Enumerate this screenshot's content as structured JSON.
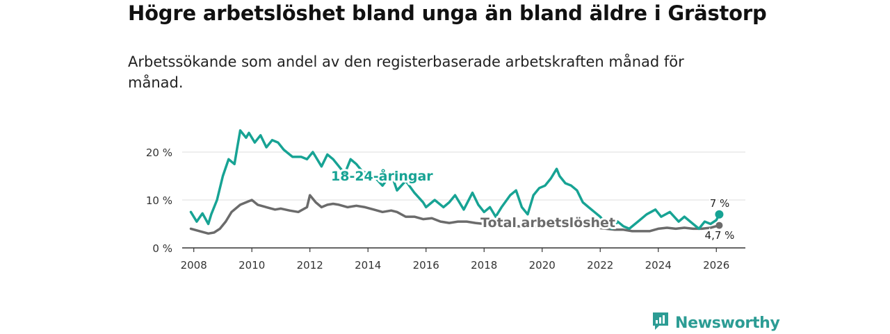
{
  "header": {
    "title": "Högre arbetslöshet bland unga än bland äldre i Grästorp",
    "subtitle": "Arbetssökande som andel av den registerbaserade arbetskraften månad för månad."
  },
  "brand": {
    "name": "Newsworthy"
  },
  "colors": {
    "youth": "#17a394",
    "total": "#6b6b6b",
    "grid": "#dddddd",
    "brand": "#2c9c94"
  },
  "chart_data": {
    "type": "line",
    "title": "Högre arbetslöshet bland unga än bland äldre i Grästorp",
    "xlabel": "",
    "ylabel": "",
    "xlim": [
      2007.6,
      2027.0
    ],
    "ylim": [
      0,
      20
    ],
    "x_ticks": [
      2008,
      2010,
      2012,
      2014,
      2016,
      2018,
      2020,
      2022,
      2024,
      2026
    ],
    "x_tick_labels": [
      "2008",
      "2010",
      "2012",
      "2014",
      "2016",
      "2018",
      "2020",
      "2022",
      "2024",
      "2026"
    ],
    "y_ticks": [
      0,
      10,
      20
    ],
    "y_tick_labels": [
      "0 %",
      "10 %",
      "20 %"
    ],
    "grid": true,
    "series": [
      {
        "name": "18-24-åringar",
        "label": "18-24-åringar",
        "end_label": "7 %",
        "color": "#17a394",
        "x": [
          2007.9,
          2008.1,
          2008.3,
          2008.5,
          2008.6,
          2008.8,
          2009.0,
          2009.2,
          2009.4,
          2009.5,
          2009.6,
          2009.8,
          2009.9,
          2010.1,
          2010.3,
          2010.5,
          2010.7,
          2010.9,
          2011.1,
          2011.4,
          2011.7,
          2011.9,
          2012.1,
          2012.4,
          2012.6,
          2012.8,
          2013.0,
          2013.2,
          2013.4,
          2013.6,
          2013.8,
          2014.0,
          2014.2,
          2014.5,
          2014.8,
          2015.0,
          2015.3,
          2015.6,
          2015.9,
          2016.0,
          2016.3,
          2016.6,
          2016.8,
          2017.0,
          2017.3,
          2017.6,
          2017.8,
          2018.0,
          2018.2,
          2018.4,
          2018.6,
          2018.9,
          2019.1,
          2019.3,
          2019.5,
          2019.7,
          2019.9,
          2020.1,
          2020.3,
          2020.5,
          2020.6,
          2020.8,
          2021.0,
          2021.2,
          2021.4,
          2021.6,
          2021.8,
          2022.0,
          2022.2,
          2022.4,
          2022.6,
          2022.8,
          2023.0,
          2023.3,
          2023.6,
          2023.9,
          2024.1,
          2024.4,
          2024.7,
          2024.9,
          2025.2,
          2025.4,
          2025.6,
          2025.8,
          2026.0,
          2026.1
        ],
        "values": [
          7.5,
          5.5,
          7.2,
          5.0,
          7.0,
          10.0,
          15.0,
          18.5,
          17.5,
          21.0,
          24.5,
          23.0,
          24.0,
          22.0,
          23.5,
          21.0,
          22.5,
          22.0,
          20.5,
          19.0,
          19.0,
          18.5,
          20.0,
          17.0,
          19.5,
          18.5,
          17.0,
          15.5,
          18.5,
          17.5,
          16.0,
          15.5,
          15.0,
          13.0,
          15.5,
          12.0,
          14.0,
          11.5,
          9.5,
          8.5,
          10.0,
          8.5,
          9.5,
          11.0,
          8.0,
          11.5,
          9.0,
          7.5,
          8.5,
          6.5,
          8.5,
          11.0,
          12.0,
          8.5,
          7.0,
          11.0,
          12.5,
          13.0,
          14.5,
          16.5,
          15.0,
          13.5,
          13.0,
          12.0,
          9.5,
          8.5,
          7.5,
          6.5,
          5.0,
          4.0,
          5.5,
          4.5,
          4.0,
          5.5,
          7.0,
          8.0,
          6.5,
          7.5,
          5.5,
          6.5,
          5.0,
          4.0,
          5.5,
          5.0,
          5.8,
          7.0
        ]
      },
      {
        "name": "Total arbetslöshet",
        "label": "Total arbetslöshet",
        "end_label": "4,7 %",
        "color": "#6b6b6b",
        "x": [
          2007.9,
          2008.2,
          2008.5,
          2008.7,
          2008.9,
          2009.1,
          2009.3,
          2009.6,
          2009.8,
          2010.0,
          2010.2,
          2010.5,
          2010.8,
          2011.0,
          2011.3,
          2011.6,
          2011.9,
          2012.0,
          2012.2,
          2012.4,
          2012.6,
          2012.8,
          2013.0,
          2013.3,
          2013.6,
          2013.9,
          2014.2,
          2014.5,
          2014.8,
          2015.0,
          2015.3,
          2015.6,
          2015.9,
          2016.2,
          2016.5,
          2016.8,
          2017.1,
          2017.4,
          2017.7,
          2018.0,
          2018.3,
          2018.6,
          2018.9,
          2019.2,
          2019.5,
          2019.8,
          2020.1,
          2020.4,
          2020.7,
          2021.0,
          2021.3,
          2021.6,
          2021.9,
          2022.2,
          2022.5,
          2022.8,
          2023.1,
          2023.4,
          2023.7,
          2024.0,
          2024.3,
          2024.6,
          2024.9,
          2025.2,
          2025.5,
          2025.8,
          2026.1
        ],
        "values": [
          4.0,
          3.5,
          3.0,
          3.2,
          4.0,
          5.5,
          7.5,
          9.0,
          9.5,
          10.0,
          9.0,
          8.5,
          8.0,
          8.2,
          7.8,
          7.5,
          8.5,
          11.0,
          9.5,
          8.5,
          9.0,
          9.2,
          9.0,
          8.5,
          8.8,
          8.5,
          8.0,
          7.5,
          7.8,
          7.5,
          6.5,
          6.5,
          6.0,
          6.2,
          5.5,
          5.2,
          5.5,
          5.5,
          5.2,
          5.0,
          5.0,
          4.5,
          4.5,
          4.5,
          4.5,
          4.5,
          4.8,
          5.0,
          5.2,
          5.0,
          4.8,
          4.5,
          4.2,
          4.0,
          3.8,
          3.8,
          3.5,
          3.5,
          3.5,
          4.0,
          4.2,
          4.0,
          4.2,
          4.0,
          4.0,
          4.2,
          4.7
        ]
      }
    ]
  }
}
